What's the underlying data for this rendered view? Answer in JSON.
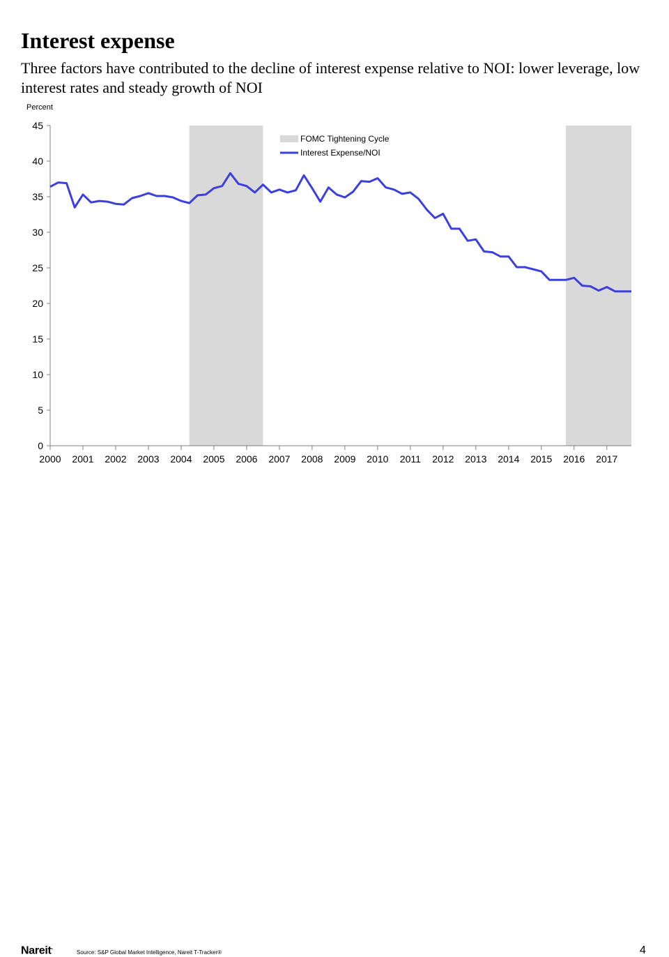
{
  "header": {
    "title": "Interest expense",
    "subtitle": "Three factors have contributed to the decline of interest expense relative to NOI: lower leverage, low interest rates and steady growth of NOI"
  },
  "footer": {
    "logo": "Nareit",
    "source": "Source: S&P Global Market Intelligence, Nareit T-Tracker®",
    "page_number": "4"
  },
  "chart_data": {
    "type": "line",
    "title": "",
    "ylabel": "Percent",
    "xlabel": "",
    "ylim": [
      0,
      45
    ],
    "xlim": [
      2000,
      2017.75
    ],
    "yticks": [
      0,
      5,
      10,
      15,
      20,
      25,
      30,
      35,
      40,
      45
    ],
    "xticks": [
      "2000",
      "2001",
      "2002",
      "2003",
      "2004",
      "2005",
      "2006",
      "2007",
      "2008",
      "2009",
      "2010",
      "2011",
      "2012",
      "2013",
      "2014",
      "2015",
      "2016",
      "2017"
    ],
    "grid": false,
    "legend": {
      "placement": "top-center"
    },
    "shaded_periods": {
      "name": "FOMC Tightening Cycle",
      "color": "#d9d9d9",
      "ranges": [
        [
          2004.25,
          2006.5
        ],
        [
          2015.75,
          2017.75
        ]
      ]
    },
    "series": [
      {
        "name": "Interest Expense/NOI",
        "color": "#3b3fe0",
        "x": [
          2000.0,
          2000.25,
          2000.5,
          2000.75,
          2001.0,
          2001.25,
          2001.5,
          2001.75,
          2002.0,
          2002.25,
          2002.5,
          2002.75,
          2003.0,
          2003.25,
          2003.5,
          2003.75,
          2004.0,
          2004.25,
          2004.5,
          2004.75,
          2005.0,
          2005.25,
          2005.5,
          2005.75,
          2006.0,
          2006.25,
          2006.5,
          2006.75,
          2007.0,
          2007.25,
          2007.5,
          2007.75,
          2008.0,
          2008.25,
          2008.5,
          2008.75,
          2009.0,
          2009.25,
          2009.5,
          2009.75,
          2010.0,
          2010.25,
          2010.5,
          2010.75,
          2011.0,
          2011.25,
          2011.5,
          2011.75,
          2012.0,
          2012.25,
          2012.5,
          2012.75,
          2013.0,
          2013.25,
          2013.5,
          2013.75,
          2014.0,
          2014.25,
          2014.5,
          2014.75,
          2015.0,
          2015.25,
          2015.5,
          2015.75,
          2016.0,
          2016.25,
          2016.5,
          2016.75,
          2017.0,
          2017.25,
          2017.5,
          2017.75
        ],
        "y": [
          36.4,
          37.0,
          36.9,
          33.5,
          35.3,
          34.2,
          34.4,
          34.3,
          34.0,
          33.9,
          34.8,
          35.1,
          35.5,
          35.1,
          35.1,
          34.9,
          34.4,
          34.1,
          35.2,
          35.3,
          36.2,
          36.5,
          38.3,
          36.8,
          36.5,
          35.6,
          36.7,
          35.6,
          36.0,
          35.6,
          35.9,
          38.0,
          36.2,
          34.3,
          36.3,
          35.3,
          34.9,
          35.7,
          37.2,
          37.1,
          37.6,
          36.3,
          36.0,
          35.4,
          35.6,
          34.7,
          33.2,
          32.0,
          32.6,
          30.5,
          30.5,
          28.8,
          29.0,
          27.3,
          27.2,
          26.6,
          26.6,
          25.1,
          25.1,
          24.8,
          24.5,
          23.3,
          23.3,
          23.3,
          23.6,
          22.5,
          22.4,
          21.8,
          22.3,
          21.7,
          21.7,
          21.7
        ]
      }
    ]
  }
}
